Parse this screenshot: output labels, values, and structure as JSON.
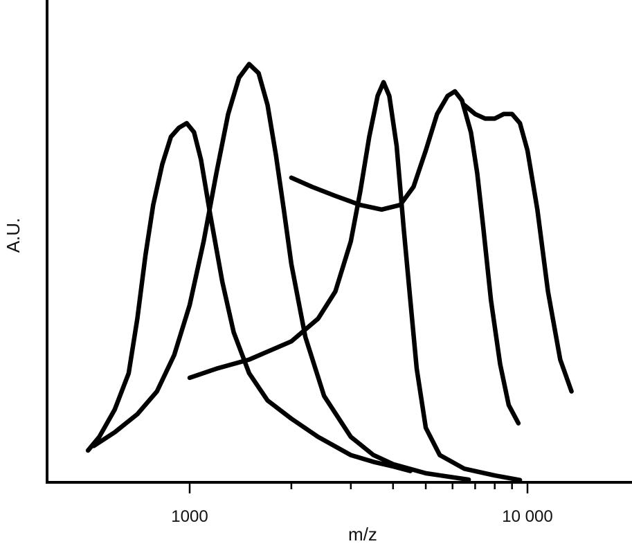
{
  "chart_data": {
    "type": "line",
    "xlabel": "m/z",
    "ylabel": "A.U.",
    "x_scale": "log",
    "xlim": [
      400,
      20000
    ],
    "ylim": [
      0,
      1
    ],
    "y_ticks_shown": false,
    "grid": false,
    "legend": "none",
    "line_color": "#000000",
    "x_major_ticks": [
      {
        "value": 1000,
        "label": "1000"
      },
      {
        "value": 10000,
        "label": "10 000"
      }
    ],
    "x_minor_ticks": [
      2000,
      3000,
      4000,
      5000,
      6000,
      7000,
      8000,
      9000
    ],
    "series": [
      {
        "points": [
          [
            500,
            0.07
          ],
          [
            540,
            0.1
          ],
          [
            600,
            0.16
          ],
          [
            660,
            0.24
          ],
          [
            700,
            0.36
          ],
          [
            740,
            0.5
          ],
          [
            780,
            0.61
          ],
          [
            830,
            0.7
          ],
          [
            880,
            0.76
          ],
          [
            930,
            0.78
          ],
          [
            980,
            0.79
          ],
          [
            1030,
            0.77
          ],
          [
            1080,
            0.71
          ],
          [
            1150,
            0.59
          ],
          [
            1250,
            0.44
          ],
          [
            1350,
            0.33
          ],
          [
            1500,
            0.24
          ],
          [
            1700,
            0.18
          ],
          [
            2000,
            0.14
          ],
          [
            2400,
            0.1
          ],
          [
            3000,
            0.06
          ],
          [
            3500,
            0.045
          ],
          [
            4000,
            0.035
          ],
          [
            4500,
            0.025
          ]
        ]
      },
      {
        "points": [
          [
            520,
            0.08
          ],
          [
            600,
            0.11
          ],
          [
            700,
            0.15
          ],
          [
            800,
            0.2
          ],
          [
            900,
            0.28
          ],
          [
            1000,
            0.39
          ],
          [
            1100,
            0.53
          ],
          [
            1200,
            0.68
          ],
          [
            1300,
            0.81
          ],
          [
            1400,
            0.89
          ],
          [
            1500,
            0.92
          ],
          [
            1600,
            0.9
          ],
          [
            1700,
            0.83
          ],
          [
            1800,
            0.72
          ],
          [
            1900,
            0.6
          ],
          [
            2000,
            0.48
          ],
          [
            2200,
            0.32
          ],
          [
            2500,
            0.19
          ],
          [
            3000,
            0.1
          ],
          [
            3500,
            0.06
          ],
          [
            4000,
            0.04
          ],
          [
            5000,
            0.02
          ],
          [
            6700,
            0.006
          ]
        ]
      },
      {
        "points": [
          [
            1000,
            0.23
          ],
          [
            1200,
            0.25
          ],
          [
            1500,
            0.27
          ],
          [
            2000,
            0.31
          ],
          [
            2400,
            0.36
          ],
          [
            2700,
            0.42
          ],
          [
            3000,
            0.53
          ],
          [
            3200,
            0.64
          ],
          [
            3400,
            0.76
          ],
          [
            3600,
            0.85
          ],
          [
            3750,
            0.88
          ],
          [
            3900,
            0.85
          ],
          [
            4100,
            0.74
          ],
          [
            4300,
            0.56
          ],
          [
            4500,
            0.4
          ],
          [
            4700,
            0.25
          ],
          [
            5000,
            0.12
          ],
          [
            5500,
            0.06
          ],
          [
            6500,
            0.03
          ],
          [
            8000,
            0.015
          ],
          [
            9500,
            0.005
          ]
        ]
      },
      {
        "points": [
          [
            2000,
            0.67
          ],
          [
            2300,
            0.65
          ],
          [
            2700,
            0.63
          ],
          [
            3200,
            0.61
          ],
          [
            3700,
            0.6
          ],
          [
            4200,
            0.61
          ],
          [
            4600,
            0.65
          ],
          [
            5000,
            0.73
          ],
          [
            5400,
            0.81
          ],
          [
            5800,
            0.85
          ],
          [
            6100,
            0.86
          ],
          [
            6400,
            0.84
          ],
          [
            6800,
            0.77
          ],
          [
            7100,
            0.68
          ],
          [
            7400,
            0.56
          ],
          [
            7800,
            0.4
          ],
          [
            8300,
            0.26
          ],
          [
            8800,
            0.17
          ],
          [
            9400,
            0.13
          ]
        ]
      },
      {
        "points": [
          [
            6500,
            0.83
          ],
          [
            7000,
            0.81
          ],
          [
            7500,
            0.8
          ],
          [
            8000,
            0.8
          ],
          [
            8500,
            0.81
          ],
          [
            9000,
            0.81
          ],
          [
            9500,
            0.79
          ],
          [
            10000,
            0.73
          ],
          [
            10700,
            0.6
          ],
          [
            11500,
            0.42
          ],
          [
            12500,
            0.27
          ],
          [
            13500,
            0.2
          ]
        ]
      }
    ]
  }
}
